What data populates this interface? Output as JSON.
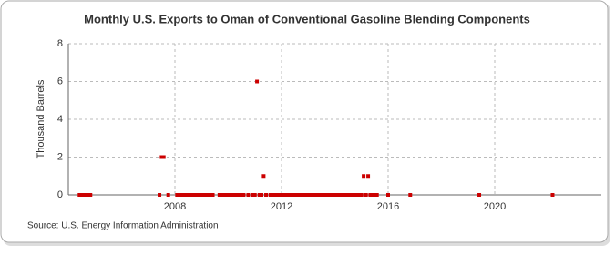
{
  "chart_data": {
    "type": "scatter",
    "title": "Monthly U.S. Exports to Oman of Conventional Gasoline Blending Components",
    "y_label": "Thousand Barrels",
    "source": "Source: U.S. Energy Information Administration",
    "color": "#cc0000",
    "xlim": [
      2004,
      2024
    ],
    "xticks": [
      2008,
      2012,
      2016,
      2020
    ],
    "ylim": [
      0,
      8
    ],
    "yticks": [
      0,
      2,
      4,
      6,
      8
    ],
    "grid": true,
    "x": [
      2004.42,
      2004.5,
      2004.58,
      2004.67,
      2004.75,
      2004.83,
      2007.42,
      2007.5,
      2007.58,
      2007.75,
      2008.08,
      2008.17,
      2008.25,
      2008.33,
      2008.42,
      2008.5,
      2008.58,
      2008.67,
      2008.75,
      2008.83,
      2008.92,
      2009.0,
      2009.08,
      2009.17,
      2009.25,
      2009.33,
      2009.42,
      2009.67,
      2009.75,
      2009.83,
      2009.92,
      2010.0,
      2010.08,
      2010.17,
      2010.25,
      2010.33,
      2010.42,
      2010.5,
      2010.58,
      2010.75,
      2010.92,
      2011.0,
      2011.08,
      2011.17,
      2011.25,
      2011.33,
      2011.42,
      2011.58,
      2011.67,
      2011.75,
      2011.83,
      2011.92,
      2012.0,
      2012.08,
      2012.17,
      2012.25,
      2012.33,
      2012.42,
      2012.5,
      2012.58,
      2012.67,
      2012.75,
      2012.83,
      2012.92,
      2013.0,
      2013.08,
      2013.17,
      2013.25,
      2013.33,
      2013.42,
      2013.5,
      2013.58,
      2013.67,
      2013.75,
      2013.83,
      2013.92,
      2014.0,
      2014.08,
      2014.17,
      2014.25,
      2014.33,
      2014.42,
      2014.5,
      2014.58,
      2014.67,
      2014.75,
      2014.83,
      2014.92,
      2015.0,
      2015.08,
      2015.17,
      2015.25,
      2015.33,
      2015.42,
      2015.5,
      2015.58,
      2016.0,
      2016.83,
      2019.42,
      2022.17
    ],
    "values": [
      0,
      0,
      0,
      0,
      0,
      0,
      0,
      2,
      2,
      0,
      0,
      0,
      0,
      0,
      0,
      0,
      0,
      0,
      0,
      0,
      0,
      0,
      0,
      0,
      0,
      0,
      0,
      0,
      0,
      0,
      0,
      0,
      0,
      0,
      0,
      0,
      0,
      0,
      0,
      0,
      0,
      0,
      6,
      0,
      0,
      1,
      0,
      0,
      0,
      0,
      0,
      0,
      0,
      0,
      0,
      0,
      0,
      0,
      0,
      0,
      0,
      0,
      0,
      0,
      0,
      0,
      0,
      0,
      0,
      0,
      0,
      0,
      0,
      0,
      0,
      0,
      0,
      0,
      0,
      0,
      0,
      0,
      0,
      0,
      0,
      0,
      0,
      0,
      0,
      1,
      0,
      1,
      0,
      0,
      0,
      0,
      0,
      0,
      0,
      0
    ]
  }
}
